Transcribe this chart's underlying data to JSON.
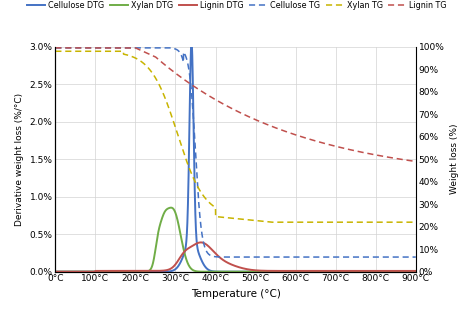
{
  "xlabel": "Temperature (°C)",
  "ylabel_left": "Derivative weight loss (%/°C)",
  "ylabel_right": "Weight loss (%)",
  "xlim": [
    0,
    900
  ],
  "ylim_left": [
    0.0,
    0.03
  ],
  "ylim_right": [
    0.0,
    1.0
  ],
  "xticks": [
    0,
    100,
    200,
    300,
    400,
    500,
    600,
    700,
    800,
    900
  ],
  "yticks_left_vals": [
    0.0,
    0.005,
    0.01,
    0.015,
    0.02,
    0.025,
    0.03
  ],
  "yticks_left_labels": [
    "0.0%",
    "0.5%",
    "1.0%",
    "1.5%",
    "2.0%",
    "2.5%",
    "3.0%"
  ],
  "yticks_right_vals": [
    0.0,
    0.1,
    0.2,
    0.3,
    0.4,
    0.5,
    0.6,
    0.7,
    0.8,
    0.9,
    1.0
  ],
  "yticks_right_labels": [
    "0%",
    "10%",
    "20%",
    "30%",
    "40%",
    "50%",
    "60%",
    "70%",
    "80%",
    "90%",
    "100%"
  ],
  "colors": {
    "cellulose_dtg": "#4472c4",
    "xylan_dtg": "#70ad47",
    "lignin_dtg": "#c0504d",
    "cellulose_tg": "#4472c4",
    "xylan_tg": "#c8b400",
    "lignin_tg": "#c0504d"
  },
  "legend": [
    {
      "label": "Cellulose DTG",
      "color": "#4472c4",
      "linestyle": "solid"
    },
    {
      "label": "Xylan DTG",
      "color": "#70ad47",
      "linestyle": "solid"
    },
    {
      "label": "Lignin DTG",
      "color": "#c0504d",
      "linestyle": "solid"
    },
    {
      "label": "Cellulose TG",
      "color": "#4472c4",
      "linestyle": "dashed"
    },
    {
      "label": "Xylan TG",
      "color": "#c8b400",
      "linestyle": "dashed"
    },
    {
      "label": "Lignin TG",
      "color": "#c0504d",
      "linestyle": "dashed"
    }
  ],
  "background_color": "#ffffff",
  "grid_color": "#d3d3d3"
}
